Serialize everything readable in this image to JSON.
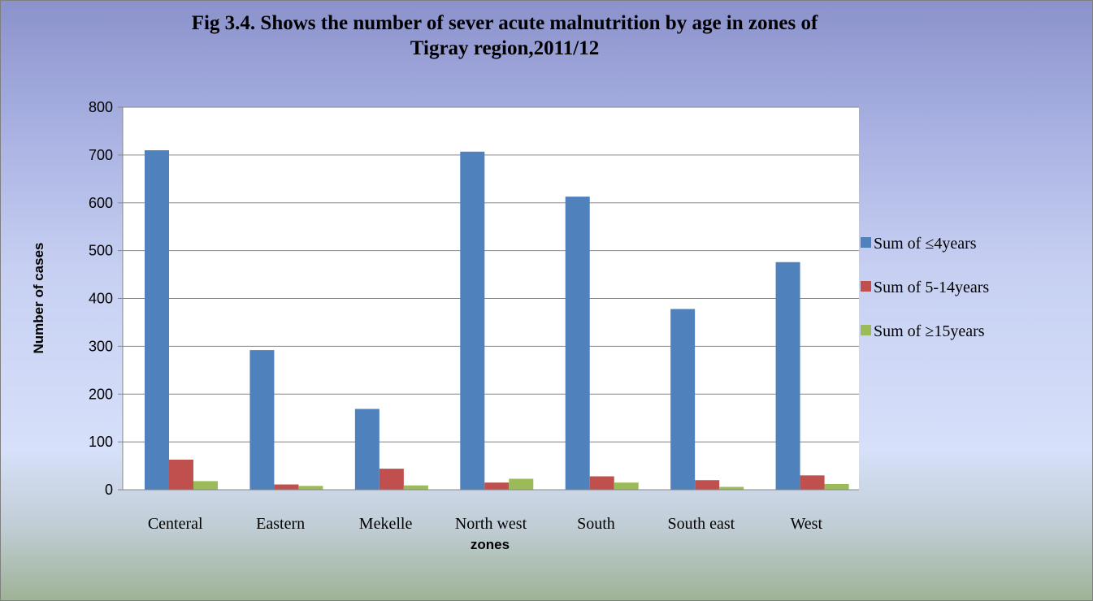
{
  "chart_data": {
    "type": "bar",
    "title_lines": [
      "Fig 3.4. Shows the number of sever acute malnutrition by age in zones of",
      "Tigray  region,2011/12"
    ],
    "xlabel": "zones",
    "ylabel": "Number of cases",
    "ylim": [
      0,
      800
    ],
    "yticks": [
      "0",
      "100",
      "200",
      "300",
      "400",
      "500",
      "600",
      "700",
      "800"
    ],
    "grid": true,
    "legend_position": "right",
    "categories": [
      "Centeral",
      "Eastern",
      "Mekelle",
      "North west",
      "South",
      "South east",
      "West"
    ],
    "series": [
      {
        "name": "Sum of ≤4years",
        "color": "#4f81bd",
        "values": [
          710,
          292,
          169,
          707,
          613,
          378,
          476
        ]
      },
      {
        "name": "Sum of 5-14years",
        "color": "#c0504d",
        "values": [
          63,
          11,
          44,
          15,
          28,
          20,
          30
        ]
      },
      {
        "name": "Sum of ≥15years",
        "color": "#9bbb59",
        "values": [
          18,
          8,
          9,
          23,
          15,
          6,
          12
        ]
      }
    ]
  }
}
